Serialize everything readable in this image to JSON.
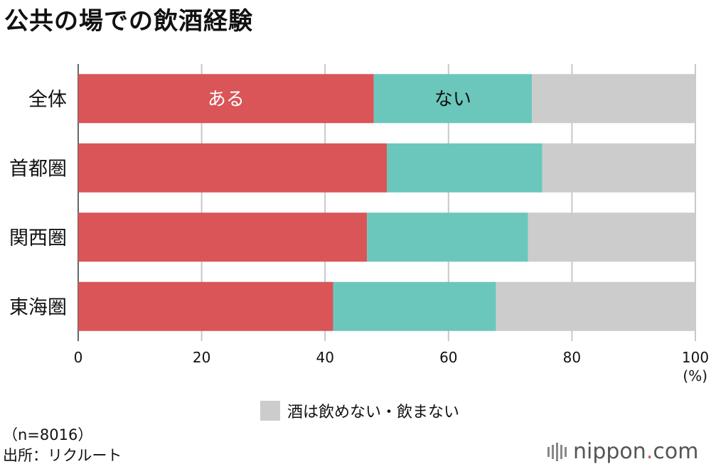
{
  "title": "公共の場での飲酒経験",
  "chart_data": {
    "type": "bar",
    "orientation": "horizontal",
    "stacked": true,
    "categories": [
      "全体",
      "首都圏",
      "関西圏",
      "東海圏"
    ],
    "series": [
      {
        "name": "ある",
        "color": "#d95557",
        "values": [
          47.9,
          50.0,
          46.8,
          41.3
        ]
      },
      {
        "name": "ない",
        "color": "#6bc7bb",
        "values": [
          25.6,
          25.2,
          26.1,
          26.4
        ]
      },
      {
        "name": "酒は飲めない・飲まない",
        "color": "#cccccc",
        "values": [
          26.5,
          24.8,
          27.1,
          32.3
        ]
      }
    ],
    "xlim": [
      0,
      100
    ],
    "xticks": [
      "0",
      "20",
      "40",
      "60",
      "80",
      "100"
    ],
    "xunit": "(%)",
    "grid": true,
    "legend_position": "bottom"
  },
  "legend_label": "酒は飲めない・飲まない",
  "footnote": {
    "sample": "（n=8016）",
    "source": "出所：リクルート"
  },
  "logo": {
    "text": "nippon",
    "dot": ".",
    "suffix": "com"
  }
}
